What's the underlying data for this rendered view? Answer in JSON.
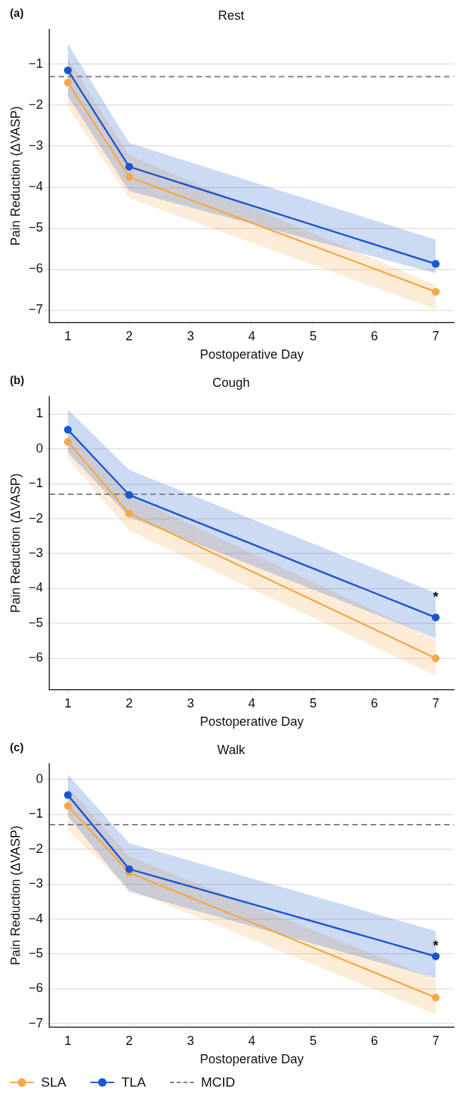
{
  "chart_data": [
    {
      "type": "line",
      "title": "Rest",
      "annotations": [
        "(a)"
      ],
      "xlabel": "Postoperative Day",
      "ylabel": "Pain Reduction (ΔVASP)",
      "x": [
        1,
        2,
        7
      ],
      "xlim": [
        0.7,
        7.3
      ],
      "xticks": [
        1,
        2,
        3,
        4,
        5,
        6,
        7
      ],
      "ylim": [
        -7.3,
        -0.15
      ],
      "yticks": [
        -7,
        -6,
        -5,
        -4,
        -3,
        -2,
        -1
      ],
      "grid": "y",
      "legend": false,
      "marker": "circle",
      "line_style": "solid",
      "series": [
        {
          "color": "#f5a94a",
          "values": [
            -1.45,
            -3.75,
            -6.55
          ],
          "lower": [
            -2.04,
            -4.27,
            -6.98
          ],
          "upper": [
            -0.87,
            -3.22,
            -6.39
          ]
        },
        {
          "color": "#1a56cc",
          "values": [
            -1.15,
            -3.5,
            -5.87
          ],
          "lower": [
            -1.78,
            -4.09,
            -6.1
          ],
          "upper": [
            -0.5,
            -2.92,
            -5.28
          ]
        }
      ],
      "ref_lines": [
        {
          "axis": "y",
          "value": -1.3,
          "color": "#808080",
          "line_style": "dashed"
        }
      ]
    },
    {
      "type": "line",
      "title": "Cough",
      "annotations": [
        "(b)",
        {
          "text": "*",
          "x": 7,
          "y": -4.26
        }
      ],
      "xlabel": "Postoperative Day",
      "ylabel": "Pain Reduction (ΔVASP)",
      "x": [
        1,
        2,
        7
      ],
      "xlim": [
        0.7,
        7.3
      ],
      "xticks": [
        1,
        2,
        3,
        4,
        5,
        6,
        7
      ],
      "ylim": [
        -6.9,
        1.5
      ],
      "yticks": [
        -6,
        -5,
        -4,
        -3,
        -2,
        -1,
        0,
        1
      ],
      "grid": "y",
      "legend": false,
      "marker": "circle",
      "line_style": "solid",
      "series": [
        {
          "color": "#f5a94a",
          "values": [
            0.2,
            -1.85,
            -6.0
          ],
          "lower": [
            -0.28,
            -2.34,
            -6.5
          ],
          "upper": [
            0.6,
            -1.35,
            -5.46
          ]
        },
        {
          "color": "#1a56cc",
          "values": [
            0.55,
            -1.32,
            -4.83
          ],
          "lower": [
            -0.1,
            -1.95,
            -5.42
          ],
          "upper": [
            1.13,
            -0.6,
            -4.13
          ]
        }
      ],
      "ref_lines": [
        {
          "axis": "y",
          "value": -1.3,
          "color": "#808080",
          "line_style": "dashed"
        }
      ]
    },
    {
      "type": "line",
      "title": "Walk",
      "annotations": [
        "(c)",
        {
          "text": "*",
          "x": 7,
          "y": -4.79
        }
      ],
      "xlabel": "Postoperative Day",
      "ylabel": "Pain Reduction (ΔVASP)",
      "x": [
        1,
        2,
        7
      ],
      "xlim": [
        0.7,
        7.3
      ],
      "xticks": [
        1,
        2,
        3,
        4,
        5,
        6,
        7
      ],
      "ylim": [
        -7.1,
        0.45
      ],
      "yticks": [
        -7,
        -6,
        -5,
        -4,
        -3,
        -2,
        -1,
        0
      ],
      "grid": "y",
      "legend": "bottom",
      "marker": "circle",
      "line_style": "solid",
      "series": [
        {
          "name": "SLA",
          "color": "#f5a94a",
          "values": [
            -0.76,
            -2.67,
            -6.25
          ],
          "lower": [
            -1.44,
            -3.15,
            -6.73
          ],
          "upper": [
            -0.2,
            -2.21,
            -5.73
          ]
        },
        {
          "name": "TLA",
          "color": "#1a56cc",
          "values": [
            -0.45,
            -2.57,
            -5.07
          ],
          "lower": [
            -1.05,
            -3.22,
            -5.7
          ],
          "upper": [
            0.14,
            -1.83,
            -4.35
          ]
        }
      ],
      "ref_lines": [
        {
          "axis": "y",
          "value": -1.3,
          "label": "MCID",
          "color": "#808080",
          "line_style": "dashed"
        }
      ]
    }
  ]
}
